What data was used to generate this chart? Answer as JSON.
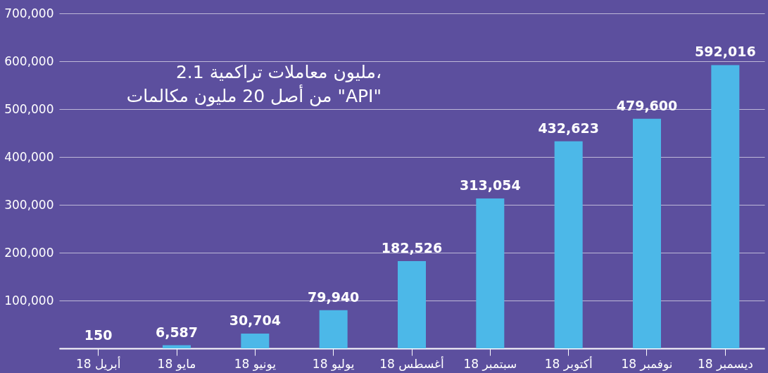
{
  "chart_data": {
    "type": "bar",
    "categories": [
      "أبريل 18",
      "مايو 18",
      "يونيو 18",
      "يوليو 18",
      "أغسطس 18",
      "سبتمبر 18",
      "أكتوبر 18",
      "نوفمبر 18",
      "ديسمبر 18"
    ],
    "values": [
      150,
      6587,
      30704,
      79940,
      182526,
      313054,
      432623,
      479600,
      592016
    ],
    "color": "#4cb8e8",
    "ylim": [
      0,
      700000
    ],
    "yticks": [
      {
        "value": 0,
        "label": null
      },
      {
        "value": 100000,
        "label": "100,000"
      },
      {
        "value": 200000,
        "label": "200,000"
      },
      {
        "value": 300000,
        "label": "300,000"
      },
      {
        "value": 400000,
        "label": "400,000"
      },
      {
        "value": 500000,
        "label": "500,000"
      },
      {
        "value": 600000,
        "label": "600,000"
      },
      {
        "value": 700000,
        "label": "700,000"
      }
    ],
    "value_labels": [
      "150",
      "6,587",
      "30,704",
      "79,940",
      "182,526",
      "313,054",
      "432,623",
      "479,600",
      "592,016"
    ],
    "grid": "y",
    "annotations": [
      "2.1 مليون معاملات تراكمية،\nمن أصل 20 مليون مكالمات \"API\""
    ]
  }
}
